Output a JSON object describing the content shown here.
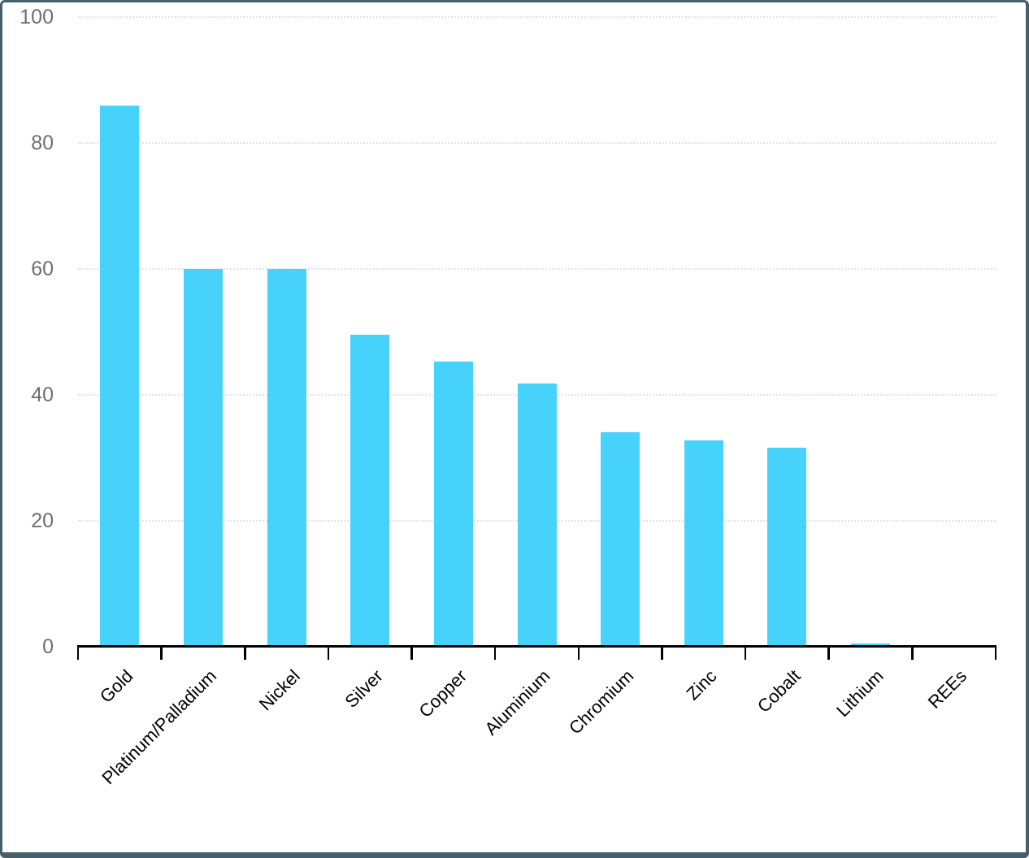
{
  "chart_data": {
    "type": "bar",
    "title": "",
    "xlabel": "",
    "ylabel": "",
    "categories": [
      "Gold",
      "Platinum/Palladium",
      "Nickel",
      "Silver",
      "Copper",
      "Aluminium",
      "Chromium",
      "Zinc",
      "Cobalt",
      "Lithium",
      "REEs"
    ],
    "values": [
      86,
      60,
      60,
      49.5,
      45.3,
      41.8,
      34.1,
      32.8,
      31.6,
      0.5,
      0
    ],
    "ylim": [
      0,
      100
    ],
    "yticks": [
      0,
      20,
      40,
      60,
      80,
      100
    ],
    "grid": true,
    "gridline_style": "dotted",
    "legend": false,
    "xlabel_rotation_deg": -45,
    "colors": {
      "bar": "#47d2fb",
      "frame_border": "#455f6b",
      "gridline": "#e2e2e2",
      "axis_line": "#000000",
      "ytick_label": "#6f6f6f",
      "xtick_label": "#000000",
      "background": "#ffffff"
    }
  }
}
